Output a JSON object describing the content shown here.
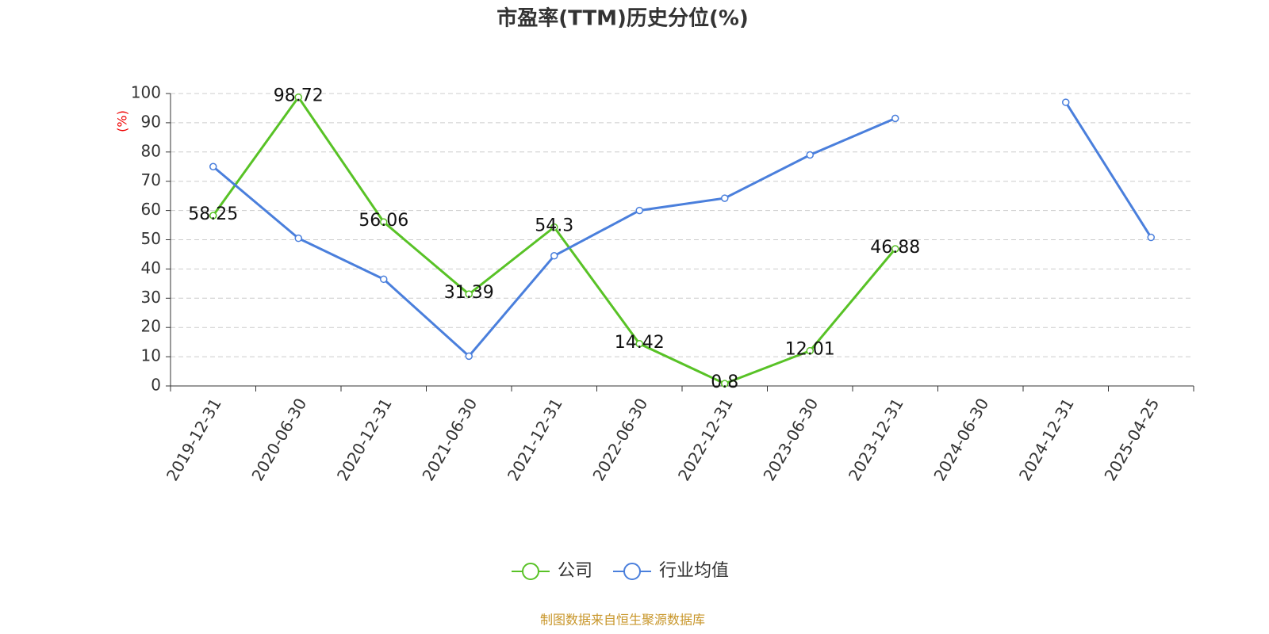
{
  "chart_data": {
    "type": "line",
    "title": "市盈率(TTM)历史分位(%)",
    "y_label": "(%)",
    "categories": [
      "2019-12-31",
      "2020-06-30",
      "2020-12-31",
      "2021-06-30",
      "2021-12-31",
      "2022-06-30",
      "2022-12-31",
      "2023-06-30",
      "2023-12-31",
      "2024-06-30",
      "2024-12-31",
      "2025-04-25"
    ],
    "series": [
      {
        "name": "公司",
        "color": "#58c226",
        "values": [
          58.25,
          98.72,
          56.06,
          31.39,
          54.3,
          14.42,
          0.8,
          12.01,
          46.88,
          null,
          null,
          null
        ],
        "show_labels": true
      },
      {
        "name": "行业均值",
        "color": "#4a7fdc",
        "values": [
          75,
          50.5,
          36.5,
          10.2,
          44.5,
          60,
          64.2,
          79,
          91.5,
          null,
          97,
          50.8
        ],
        "show_labels": false
      }
    ],
    "ylim": [
      0,
      100
    ],
    "yticks": [
      0,
      10,
      20,
      30,
      40,
      50,
      60,
      70,
      80,
      90,
      100
    ],
    "grid": true,
    "legend": "bottom",
    "source": "制图数据来自恒生聚源数据库"
  }
}
